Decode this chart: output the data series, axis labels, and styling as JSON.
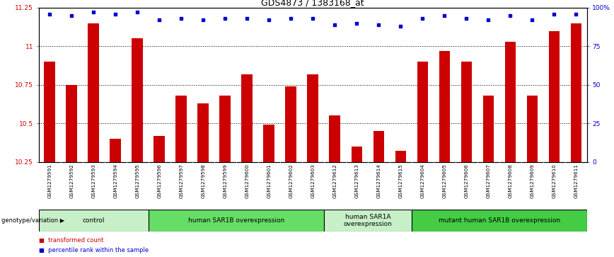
{
  "title": "GDS4873 / 1383168_at",
  "samples": [
    "GSM1279591",
    "GSM1279592",
    "GSM1279593",
    "GSM1279594",
    "GSM1279595",
    "GSM1279596",
    "GSM1279597",
    "GSM1279598",
    "GSM1279599",
    "GSM1279600",
    "GSM1279601",
    "GSM1279602",
    "GSM1279603",
    "GSM1279612",
    "GSM1279613",
    "GSM1279614",
    "GSM1279615",
    "GSM1279604",
    "GSM1279605",
    "GSM1279606",
    "GSM1279607",
    "GSM1279608",
    "GSM1279609",
    "GSM1279610",
    "GSM1279611"
  ],
  "bar_values": [
    10.9,
    10.75,
    11.15,
    10.4,
    11.05,
    10.42,
    10.68,
    10.63,
    10.68,
    10.82,
    10.49,
    10.74,
    10.82,
    10.55,
    10.35,
    10.45,
    10.32,
    10.9,
    10.97,
    10.9,
    10.68,
    11.03,
    10.68,
    11.1,
    11.15
  ],
  "percentile_values": [
    96,
    95,
    97,
    96,
    97,
    92,
    93,
    92,
    93,
    93,
    92,
    93,
    93,
    89,
    90,
    89,
    88,
    93,
    95,
    93,
    92,
    95,
    92,
    96,
    96
  ],
  "ymin": 10.25,
  "ymax": 11.25,
  "yticks": [
    10.25,
    10.5,
    10.75,
    11.0,
    11.25
  ],
  "ytick_labels": [
    "10.25",
    "10.5",
    "10.75",
    "11",
    "11.25"
  ],
  "right_yticks": [
    0,
    25,
    50,
    75,
    100
  ],
  "right_ytick_labels": [
    "0",
    "25",
    "50",
    "75",
    "100%"
  ],
  "bar_color": "#cc0000",
  "dot_color": "#0000cc",
  "groups": [
    {
      "label": "control",
      "start": 0,
      "end": 5,
      "color": "#c8f0c8"
    },
    {
      "label": "human SAR1B overexpression",
      "start": 5,
      "end": 13,
      "color": "#66dd66"
    },
    {
      "label": "human SAR1A\noverexpression",
      "start": 13,
      "end": 17,
      "color": "#c8f0c8"
    },
    {
      "label": "mutant human SAR1B overexpression",
      "start": 17,
      "end": 25,
      "color": "#44cc44"
    }
  ],
  "genotype_label": "genotype/variation",
  "legend_items": [
    {
      "label": "transformed count",
      "color": "#cc0000"
    },
    {
      "label": "percentile rank within the sample",
      "color": "#0000cc"
    }
  ],
  "bg_color": "#ffffff",
  "title_fontsize": 9,
  "tick_fontsize": 6.5,
  "bar_width": 0.5,
  "xtick_bg_color": "#d8d8d8",
  "grid_yticks": [
    10.5,
    10.75,
    11.0
  ]
}
